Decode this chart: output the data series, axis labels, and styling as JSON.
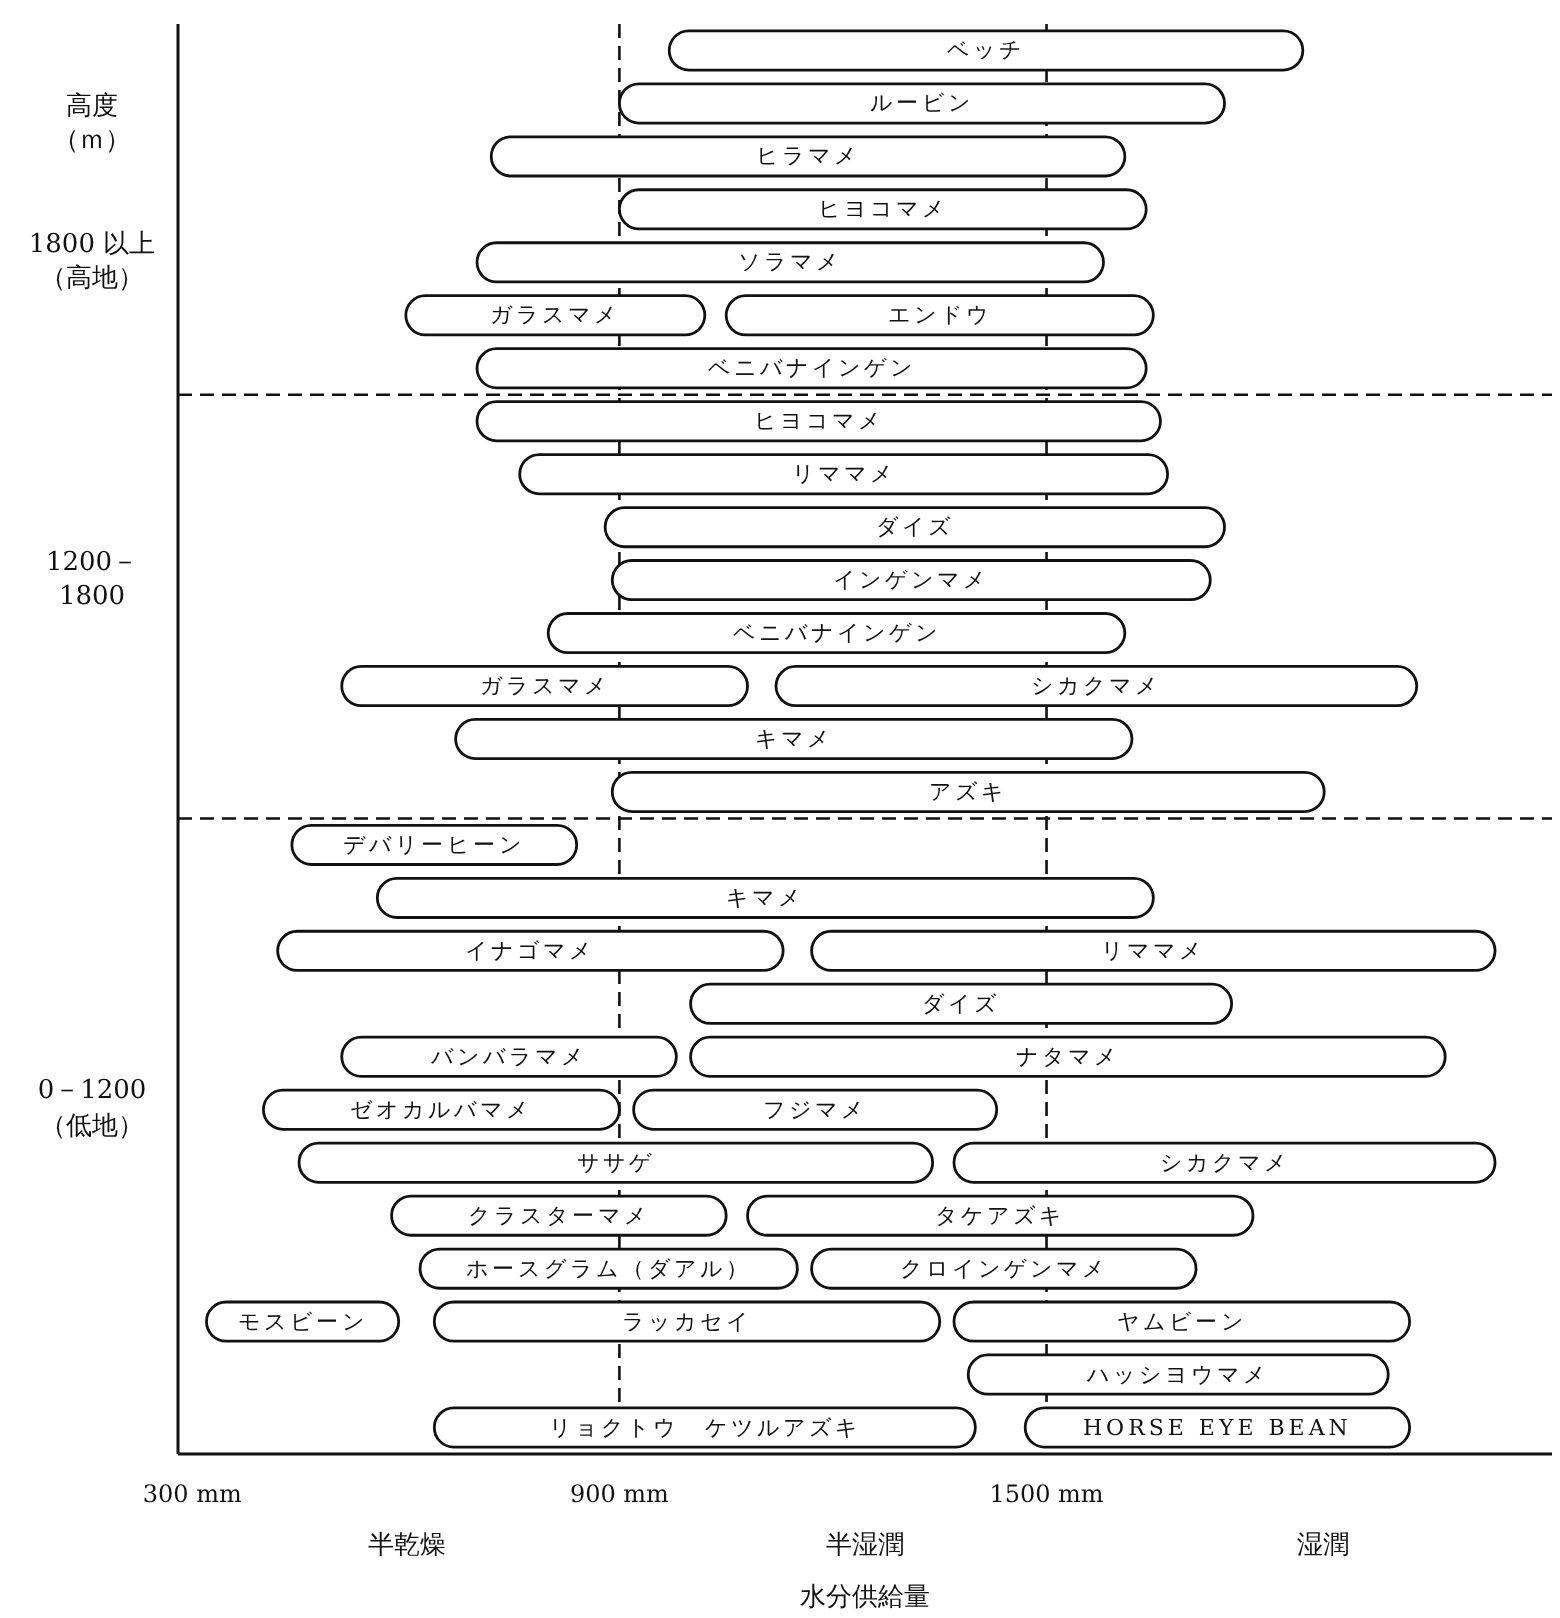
{
  "chart_data": {
    "type": "bar",
    "orientation": "horizontal",
    "ylabel": "高度（ｍ）",
    "xlabel": "水分供給量",
    "annotations": [
      "半乾燥",
      "半湿潤",
      "湿潤"
    ],
    "categories": [
      null,
      null,
      null,
      null,
      "1800 以上（高地）",
      null,
      null,
      null,
      null,
      null,
      "1200－1800",
      null,
      null,
      null,
      null,
      null,
      null,
      null,
      null,
      null,
      "0－1200（低地）",
      null,
      null,
      null,
      null,
      null,
      null
    ],
    "xlim": [
      280,
      2210
    ],
    "xticks": [
      {
        "value": 300,
        "label": "300 mm"
      },
      {
        "value": 900,
        "label": "900 mm"
      },
      {
        "value": 1500,
        "label": "1500 mm"
      }
    ],
    "ref_lines": [
      {
        "axis": "x",
        "value": 900,
        "line_style": "dashed"
      },
      {
        "axis": "x",
        "value": 1500,
        "line_style": "dashed"
      }
    ],
    "grid": false,
    "series": [
      {
        "color": "#ffffff",
        "base": [
          970,
          900,
          720,
          900,
          700,
          600,
          700,
          700,
          760,
          880,
          890,
          800,
          510,
          670,
          890,
          440,
          560,
          420,
          1000,
          510,
          400,
          450,
          580,
          620,
          320,
          1390,
          640
        ],
        "values": [
          890,
          850,
          890,
          740,
          880,
          420,
          940,
          960,
          910,
          870,
          840,
          810,
          570,
          950,
          1000,
          400,
          1090,
          710,
          760,
          470,
          500,
          890,
          470,
          530,
          270,
          590,
          760
        ],
        "value_labels": [
          "ベッチ",
          "ルービン",
          "ヒラマメ",
          "ヒヨコマメ",
          "ソラマメ",
          "ガラスマメ",
          "ベニバナインゲン",
          "ヒヨコマメ",
          "リママメ",
          "ダイズ",
          "インゲンマメ",
          "ベニバナインゲン",
          "ガラスマメ",
          "キマメ",
          "アズキ",
          "デバリーヒーン",
          "キマメ",
          "イナゴマメ",
          "ダイズ",
          "バンバラマメ",
          "ゼオカルバマメ",
          "ササゲ",
          "クラスターマメ",
          "ホースグラム（ダアル）",
          "モスビーン",
          "ハッシヨウマメ",
          "リョクトウ　ケツルアズキ"
        ]
      },
      {
        "color": "#ffffff",
        "base": [
          null,
          null,
          null,
          null,
          null,
          1050,
          null,
          null,
          null,
          null,
          null,
          null,
          1120,
          null,
          null,
          null,
          null,
          1170,
          null,
          1000,
          920,
          1370,
          1080,
          1170,
          640,
          null,
          1470
        ],
        "values": [
          null,
          null,
          null,
          null,
          null,
          600,
          null,
          null,
          null,
          null,
          null,
          null,
          900,
          null,
          null,
          null,
          null,
          960,
          null,
          1060,
          510,
          760,
          710,
          540,
          710,
          null,
          540
        ],
        "value_labels": [
          null,
          null,
          null,
          null,
          null,
          "エンドウ",
          null,
          null,
          null,
          null,
          null,
          null,
          "シカクマメ",
          null,
          null,
          null,
          null,
          "リママメ",
          null,
          "ナタマメ",
          "フジマメ",
          "シカクマメ",
          "タケアズキ",
          "クロインゲンマメ",
          "ラッカセイ",
          null,
          "HORSE EYE BEAN"
        ]
      },
      {
        "color": "#ffffff",
        "base": [
          null,
          null,
          null,
          null,
          null,
          null,
          null,
          null,
          null,
          null,
          null,
          null,
          null,
          null,
          null,
          null,
          null,
          null,
          null,
          null,
          null,
          null,
          null,
          null,
          1370,
          null,
          null
        ],
        "values": [
          null,
          null,
          null,
          null,
          null,
          null,
          null,
          null,
          null,
          null,
          null,
          null,
          null,
          null,
          null,
          null,
          null,
          null,
          null,
          null,
          null,
          null,
          null,
          null,
          640,
          null,
          null
        ],
        "value_labels": [
          null,
          null,
          null,
          null,
          null,
          null,
          null,
          null,
          null,
          null,
          null,
          null,
          null,
          null,
          null,
          null,
          null,
          null,
          null,
          null,
          null,
          null,
          null,
          null,
          "ヤムビーン",
          null,
          null
        ]
      }
    ]
  }
}
